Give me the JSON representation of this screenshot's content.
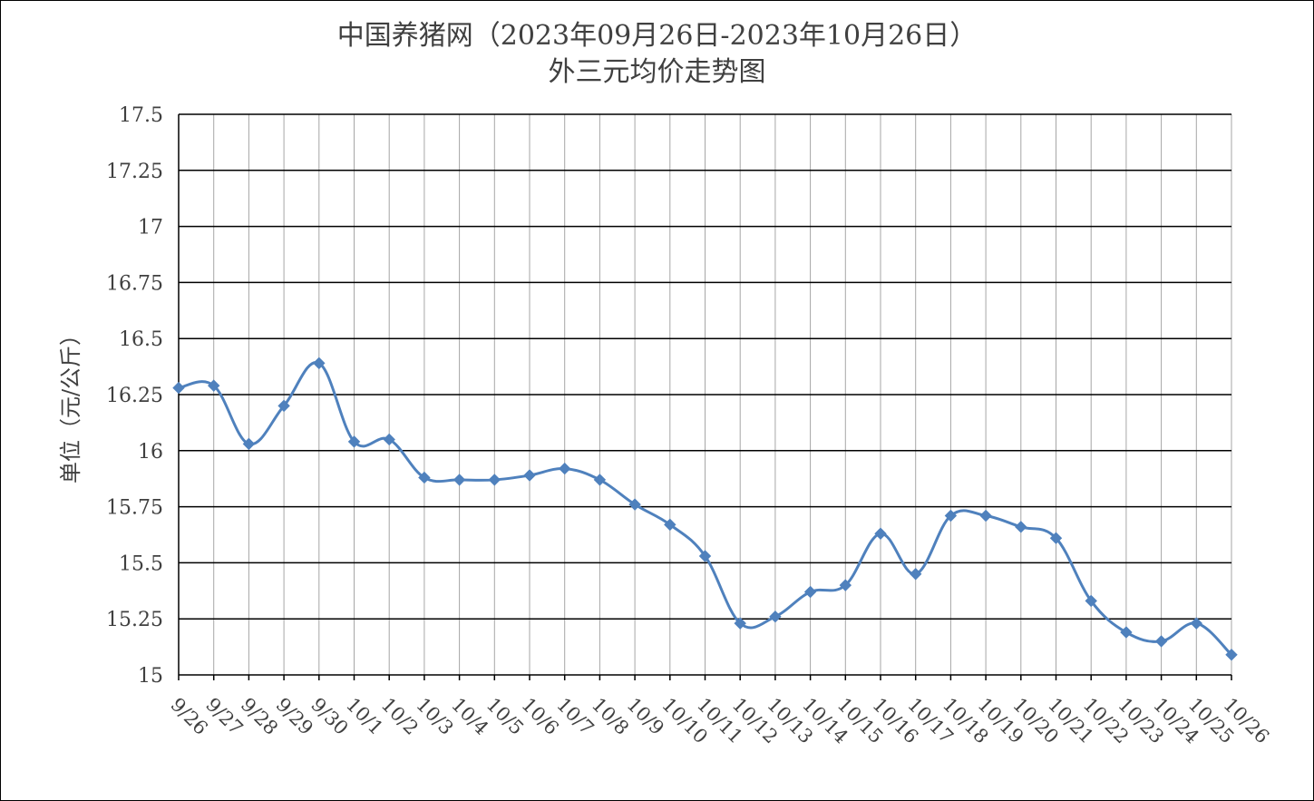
{
  "chart_data": {
    "type": "line",
    "title": "中国养猪网（2023年09月26日-2023年10月26日）",
    "subtitle": "外三元均价走势图",
    "xlabel": "",
    "ylabel": "单位（元/公斤）",
    "ylim": [
      15,
      17.5
    ],
    "yticks": [
      "15",
      "15.25",
      "15.5",
      "15.75",
      "16",
      "16.25",
      "16.5",
      "16.75",
      "17",
      "17.25",
      "17.5"
    ],
    "categories": [
      "9/26",
      "9/27",
      "9/28",
      "9/29",
      "9/30",
      "10/1",
      "10/2",
      "10/3",
      "10/4",
      "10/5",
      "10/6",
      "10/7",
      "10/8",
      "10/9",
      "10/10",
      "10/11",
      "10/12",
      "10/13",
      "10/14",
      "10/15",
      "10/16",
      "10/17",
      "10/18",
      "10/19",
      "10/20",
      "10/21",
      "10/22",
      "10/23",
      "10/24",
      "10/25",
      "10/26"
    ],
    "series": [
      {
        "values": [
          16.28,
          16.29,
          16.03,
          16.2,
          16.39,
          16.04,
          16.05,
          15.88,
          15.87,
          15.87,
          15.89,
          15.92,
          15.87,
          15.76,
          15.67,
          15.53,
          15.23,
          15.26,
          15.37,
          15.4,
          15.63,
          15.45,
          15.71,
          15.71,
          15.66,
          15.61,
          15.33,
          15.19,
          15.15,
          15.23,
          15.09
        ],
        "color": "#4F81BD",
        "marker": "diamond"
      }
    ],
    "grid": true,
    "legend": "none"
  }
}
